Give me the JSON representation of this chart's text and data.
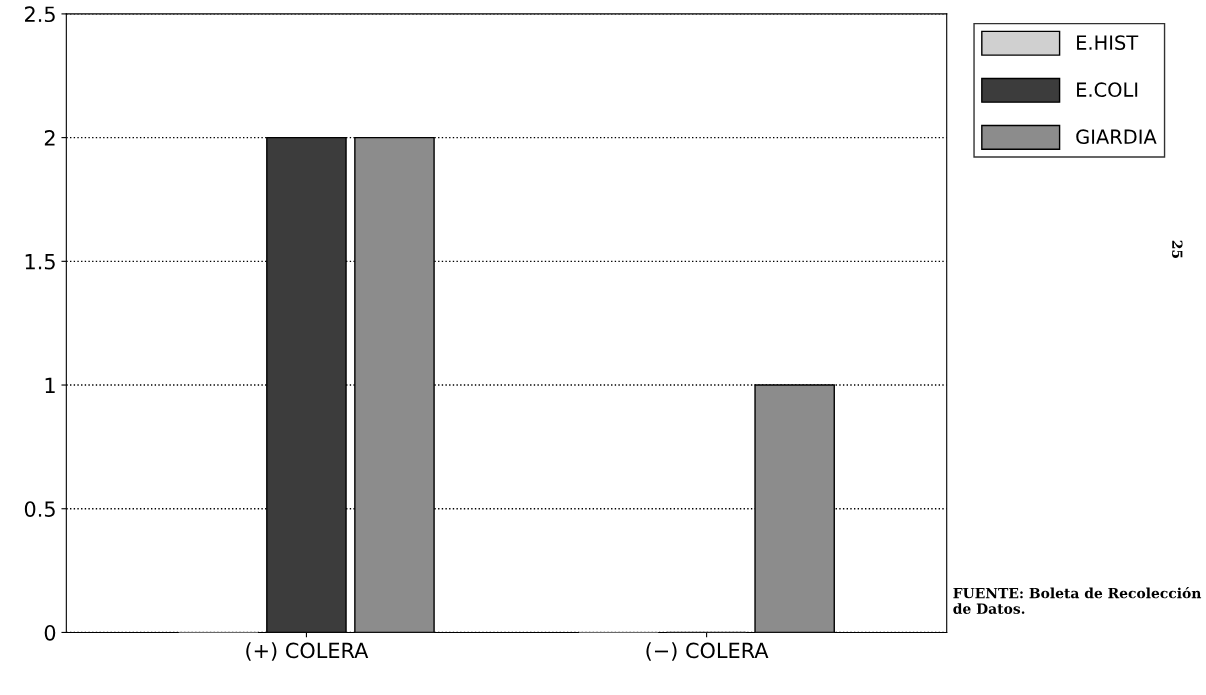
{
  "chart_data": {
    "type": "bar",
    "categories": [
      "(+) COLERA",
      "(−) COLERA"
    ],
    "series": [
      {
        "name": "E.HIST",
        "color": "#d0d0d0",
        "values": [
          0,
          0
        ]
      },
      {
        "name": "E.COLI",
        "color": "#3c3c3c",
        "values": [
          2,
          0
        ]
      },
      {
        "name": "GIARDIA",
        "color": "#8c8c8c",
        "values": [
          2,
          1
        ]
      }
    ],
    "ylim": [
      0,
      2.5
    ],
    "yticks": [
      0,
      0.5,
      1,
      1.5,
      2,
      2.5
    ],
    "grid": "y",
    "legend": "top right",
    "annotations": [
      "FUENTE: Boleta de Recolección de Datos.",
      "25"
    ]
  }
}
